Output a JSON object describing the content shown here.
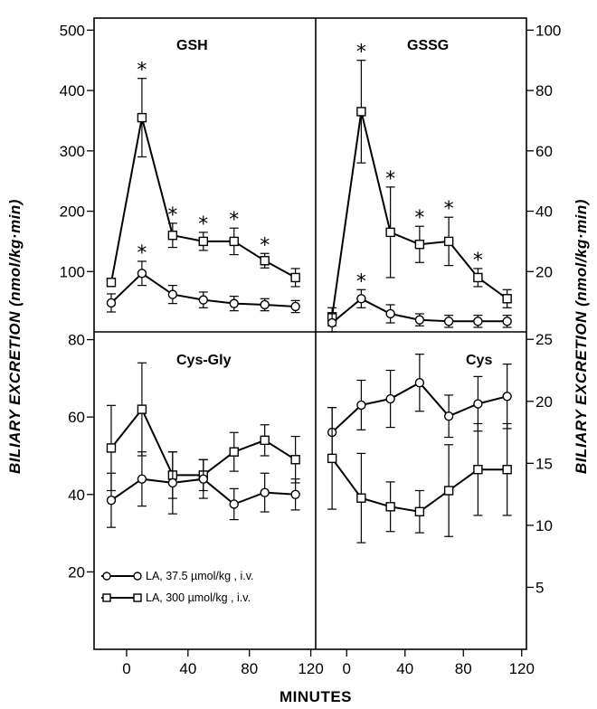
{
  "chart_data": {
    "type": "line",
    "x_title": "MINUTES",
    "y_title_left": "BILIARY EXCRETION  (nmol/kg·min)",
    "y_title_right": "BILIARY EXCRETION  (nmol/kg·min)",
    "x_ticks": [
      0,
      40,
      80,
      120
    ],
    "x_range": [
      -20,
      122
    ],
    "legend": [
      {
        "series": "LA37",
        "marker": "circle",
        "label": "LA, 37.5 µmol/kg , i.v."
      },
      {
        "series": "LA300",
        "marker": "square",
        "label": "LA, 300 µmol/kg , i.v."
      }
    ],
    "panels": [
      {
        "id": "gsh",
        "title": "GSH",
        "axis": "left",
        "ylim": [
          0,
          520
        ],
        "yticks": [
          100,
          200,
          300,
          400,
          500
        ],
        "ytick_labels": [
          "100",
          "200",
          "300",
          "400",
          "500"
        ],
        "series": [
          {
            "name": "LA300",
            "marker": "square",
            "x": [
              -10,
              10,
              30,
              50,
              70,
              90,
              110
            ],
            "y": [
              82,
              355,
              160,
              150,
              150,
              118,
              90
            ],
            "err": [
              0,
              65,
              20,
              15,
              22,
              12,
              15
            ],
            "star": [
              false,
              true,
              true,
              true,
              true,
              true,
              false
            ]
          },
          {
            "name": "LA37",
            "marker": "circle",
            "x": [
              -10,
              10,
              30,
              50,
              70,
              90,
              110
            ],
            "y": [
              48,
              97,
              62,
              53,
              47,
              45,
              42
            ],
            "err": [
              15,
              20,
              15,
              13,
              12,
              10,
              10
            ],
            "star": [
              false,
              true,
              false,
              false,
              false,
              false,
              false
            ]
          }
        ]
      },
      {
        "id": "gssg",
        "title": "GSSG",
        "axis": "right",
        "ylim": [
          0,
          104
        ],
        "yticks": [
          20,
          40,
          60,
          80,
          100
        ],
        "ytick_labels": [
          "20",
          "40",
          "60",
          "80",
          "100"
        ],
        "series": [
          {
            "name": "LA300",
            "marker": "square",
            "x": [
              -10,
              10,
              30,
              50,
              70,
              90,
              110
            ],
            "y": [
              5,
              73,
              33,
              29,
              30,
              18,
              11
            ],
            "err": [
              3,
              17,
              15,
              6,
              8,
              3,
              3
            ],
            "star": [
              false,
              true,
              true,
              true,
              true,
              true,
              false
            ]
          },
          {
            "name": "LA37",
            "marker": "circle",
            "x": [
              -10,
              10,
              30,
              50,
              70,
              90,
              110
            ],
            "y": [
              3,
              11,
              6,
              4,
              3.5,
              3.5,
              3.5
            ],
            "err": [
              3,
              3,
              3,
              2,
              2,
              2,
              2
            ],
            "star": [
              false,
              true,
              false,
              false,
              false,
              false,
              false
            ]
          }
        ]
      },
      {
        "id": "cysgly",
        "title": "Cys-Gly",
        "axis": "left",
        "ylim": [
          0,
          82
        ],
        "yticks": [
          20,
          40,
          60,
          80
        ],
        "ytick_labels": [
          "20",
          "40",
          "60",
          "80"
        ],
        "series": [
          {
            "name": "LA300",
            "marker": "square",
            "x": [
              -10,
              10,
              30,
              50,
              70,
              90,
              110
            ],
            "y": [
              52,
              62,
              45,
              45,
              51,
              54,
              49
            ],
            "err": [
              11,
              12,
              6,
              4,
              5,
              4,
              6
            ],
            "star": [
              false,
              false,
              false,
              false,
              false,
              false,
              false
            ]
          },
          {
            "name": "LA37",
            "marker": "circle",
            "x": [
              -10,
              10,
              30,
              50,
              70,
              90,
              110
            ],
            "y": [
              38.5,
              44,
              43,
              44,
              37.5,
              40.5,
              40
            ],
            "err": [
              7,
              7,
              8,
              5,
              4,
              5,
              4
            ],
            "star": [
              false,
              false,
              false,
              false,
              false,
              false,
              false
            ]
          }
        ]
      },
      {
        "id": "cys",
        "title": "Cys",
        "axis": "right",
        "ylim": [
          0,
          25.6
        ],
        "yticks": [
          5,
          10,
          15,
          20,
          25
        ],
        "ytick_labels": [
          "5",
          "10",
          "15",
          "20",
          "25"
        ],
        "series": [
          {
            "name": "LA37",
            "marker": "circle",
            "x": [
              -10,
              10,
              30,
              50,
              70,
              90,
              110
            ],
            "y": [
              17.5,
              19.7,
              20.2,
              21.5,
              18.8,
              19.8,
              20.4
            ],
            "err": [
              2,
              2,
              2.3,
              2.3,
              1.7,
              2.2,
              2.6
            ],
            "star": [
              false,
              false,
              false,
              false,
              false,
              false,
              false
            ]
          },
          {
            "name": "LA300",
            "marker": "square",
            "x": [
              -10,
              10,
              30,
              50,
              70,
              90,
              110
            ],
            "y": [
              15.4,
              12.2,
              11.5,
              11.1,
              12.8,
              14.5,
              14.5
            ],
            "err": [
              4.1,
              3.6,
              2,
              1.7,
              3.7,
              3.7,
              3.7
            ],
            "star": [
              false,
              false,
              false,
              false,
              false,
              false,
              false
            ]
          }
        ]
      }
    ]
  }
}
